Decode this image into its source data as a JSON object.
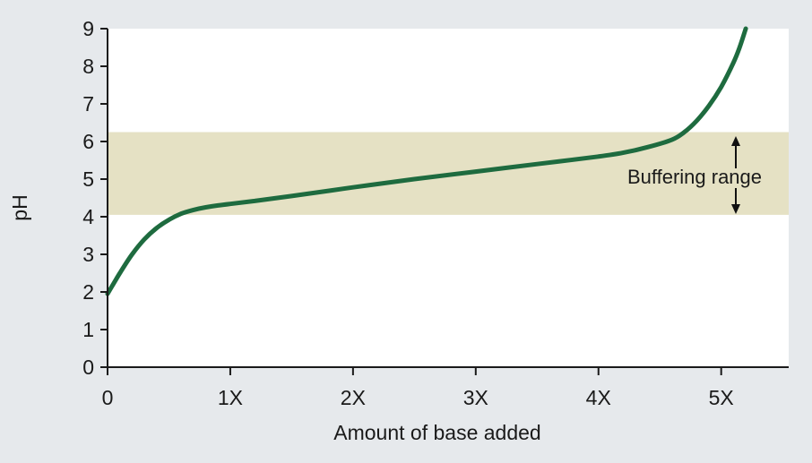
{
  "chart_data": {
    "type": "line",
    "title": "",
    "xlabel": "Amount of base added",
    "ylabel": "pH",
    "xlim": [
      0,
      5.55
    ],
    "ylim": [
      0,
      9
    ],
    "x_ticks": [
      {
        "value": 0,
        "label": "0"
      },
      {
        "value": 1,
        "label": "1X"
      },
      {
        "value": 2,
        "label": "2X"
      },
      {
        "value": 3,
        "label": "3X"
      },
      {
        "value": 4,
        "label": "4X"
      },
      {
        "value": 5,
        "label": "5X"
      }
    ],
    "y_ticks": [
      {
        "value": 0,
        "label": "0"
      },
      {
        "value": 1,
        "label": "1"
      },
      {
        "value": 2,
        "label": "2"
      },
      {
        "value": 3,
        "label": "3"
      },
      {
        "value": 4,
        "label": "4"
      },
      {
        "value": 5,
        "label": "5"
      },
      {
        "value": 6,
        "label": "6"
      },
      {
        "value": 7,
        "label": "7"
      },
      {
        "value": 8,
        "label": "8"
      },
      {
        "value": 9,
        "label": "9"
      }
    ],
    "series": [
      {
        "color": "#1e6b3f",
        "x": [
          0,
          0.1,
          0.2,
          0.3,
          0.4,
          0.5,
          0.6,
          0.7,
          0.8,
          0.9,
          1.0,
          1.2,
          1.5,
          2.0,
          2.5,
          3.0,
          3.5,
          4.0,
          4.2,
          4.4,
          4.6,
          4.7,
          4.8,
          4.9,
          5.0,
          5.1,
          5.15,
          5.2
        ],
        "y": [
          1.95,
          2.5,
          3.0,
          3.4,
          3.7,
          3.92,
          4.08,
          4.18,
          4.25,
          4.3,
          4.34,
          4.42,
          4.55,
          4.78,
          5.0,
          5.2,
          5.4,
          5.6,
          5.7,
          5.85,
          6.05,
          6.25,
          6.55,
          6.95,
          7.45,
          8.1,
          8.5,
          9.0
        ]
      }
    ],
    "band": {
      "y_from": 4.05,
      "y_to": 6.25,
      "color": "#e5e1c4",
      "label": "Buffering range"
    },
    "grid": false,
    "legend": "none"
  }
}
